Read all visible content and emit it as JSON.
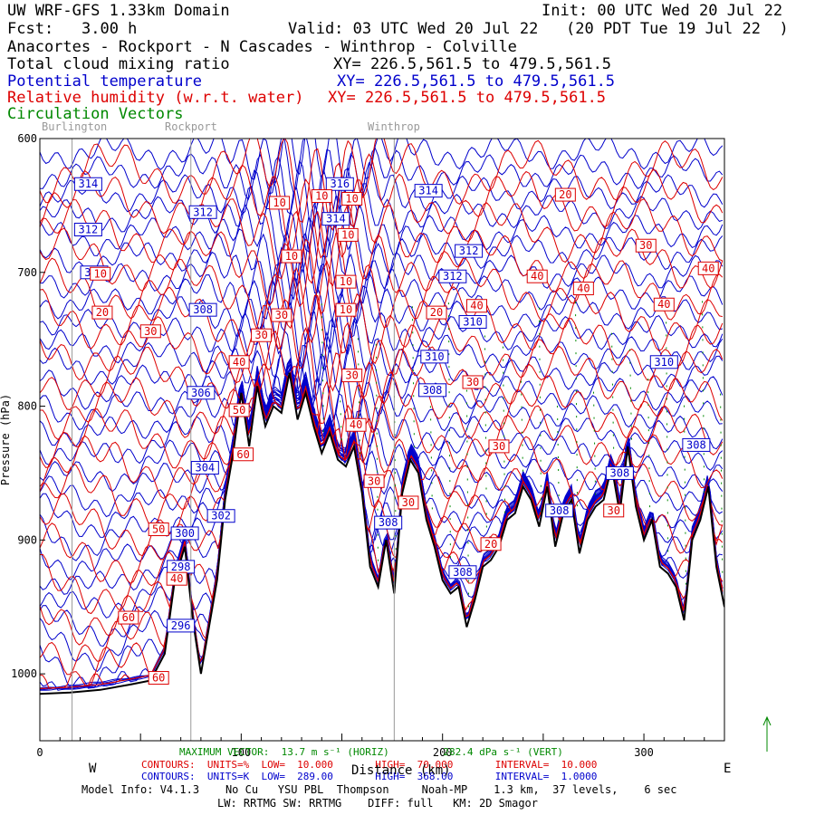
{
  "header": {
    "model": "UW WRF-GFS 1.33km Domain",
    "init": "Init: 00 UTC Wed 20 Jul 22",
    "fcst_label": "Fcst:",
    "fcst_value": "3.00 h",
    "valid": "Valid: 03 UTC Wed 20 Jul 22   (20 PDT Tue 19 Jul 22  )",
    "route": "Anacortes - Rockport - N Cascades - Winthrop - Colville",
    "fields": [
      {
        "name": "Total cloud mixing ratio",
        "xy": "XY= 226.5,561.5 to 479.5,561.5",
        "color": "#000000"
      },
      {
        "name": "Potential temperature",
        "xy": "XY= 226.5,561.5 to 479.5,561.5",
        "color": "#0000cc"
      },
      {
        "name": "Relative humidity (w.r.t. water)",
        "xy": "XY= 226.5,561.5 to 479.5,561.5",
        "color": "#dd0000"
      },
      {
        "name": "Circulation Vectors",
        "xy": "",
        "color": "#008800"
      }
    ]
  },
  "places": [
    "Burlington",
    "Rockport",
    "Winthrop"
  ],
  "chart_data": {
    "type": "line",
    "title": "Cross section: Anacortes - Rockport - N Cascades - Winthrop - Colville",
    "xlabel": "Distance (km)",
    "ylabel": "Pressure (hPa)",
    "xlim": [
      0,
      340
    ],
    "ylim": [
      1050,
      600
    ],
    "x_ticks": [
      "0",
      "100",
      "200",
      "300"
    ],
    "y_ticks": [
      "600",
      "700",
      "800",
      "900",
      "1000"
    ],
    "y_tick_values": [
      600,
      700,
      800,
      900,
      1000
    ],
    "x_tick_values": [
      0,
      100,
      200,
      300
    ],
    "place_markers": [
      {
        "name": "Burlington",
        "x": 16
      },
      {
        "name": "Rockport",
        "x": 75
      },
      {
        "name": "Winthrop",
        "x": 176
      }
    ],
    "terrain": {
      "x": [
        0,
        15,
        30,
        45,
        55,
        62,
        67,
        72,
        76,
        80,
        84,
        88,
        92,
        96,
        100,
        104,
        108,
        112,
        116,
        120,
        124,
        128,
        132,
        136,
        140,
        144,
        148,
        152,
        156,
        160,
        164,
        168,
        172,
        176,
        180,
        184,
        188,
        192,
        196,
        200,
        204,
        208,
        212,
        216,
        220,
        224,
        228,
        232,
        236,
        240,
        244,
        248,
        252,
        256,
        260,
        264,
        268,
        272,
        276,
        280,
        284,
        288,
        292,
        296,
        300,
        304,
        308,
        312,
        316,
        320,
        324,
        328,
        332,
        336,
        340
      ],
      "p": [
        1015,
        1014,
        1012,
        1008,
        1005,
        985,
        930,
        905,
        960,
        1000,
        965,
        930,
        870,
        835,
        790,
        830,
        785,
        815,
        800,
        805,
        775,
        810,
        790,
        815,
        835,
        820,
        840,
        845,
        830,
        865,
        920,
        935,
        900,
        940,
        865,
        840,
        850,
        885,
        905,
        930,
        940,
        935,
        965,
        945,
        920,
        915,
        905,
        885,
        880,
        860,
        870,
        890,
        860,
        905,
        880,
        870,
        910,
        885,
        875,
        870,
        845,
        880,
        830,
        875,
        900,
        885,
        920,
        925,
        935,
        960,
        900,
        885,
        860,
        920,
        950
      ]
    },
    "theta_labels": [
      {
        "text": "314",
        "x": 24,
        "p": 634
      },
      {
        "text": "312",
        "x": 24,
        "p": 668
      },
      {
        "text": "310",
        "x": 27,
        "p": 700
      },
      {
        "text": "312",
        "x": 81,
        "p": 655
      },
      {
        "text": "308",
        "x": 81,
        "p": 728
      },
      {
        "text": "306",
        "x": 80,
        "p": 790
      },
      {
        "text": "304",
        "x": 82,
        "p": 846
      },
      {
        "text": "302",
        "x": 90,
        "p": 882
      },
      {
        "text": "300",
        "x": 72,
        "p": 895
      },
      {
        "text": "298",
        "x": 70,
        "p": 920
      },
      {
        "text": "296",
        "x": 70,
        "p": 964
      },
      {
        "text": "316",
        "x": 149,
        "p": 634
      },
      {
        "text": "314",
        "x": 147,
        "p": 660
      },
      {
        "text": "314",
        "x": 193,
        "p": 639
      },
      {
        "text": "312",
        "x": 213,
        "p": 684
      },
      {
        "text": "312",
        "x": 205,
        "p": 703
      },
      {
        "text": "310",
        "x": 215,
        "p": 737
      },
      {
        "text": "310",
        "x": 196,
        "p": 763
      },
      {
        "text": "308",
        "x": 195,
        "p": 788
      },
      {
        "text": "308",
        "x": 173,
        "p": 887
      },
      {
        "text": "308",
        "x": 210,
        "p": 924
      },
      {
        "text": "308",
        "x": 258,
        "p": 878
      },
      {
        "text": "308",
        "x": 288,
        "p": 850
      },
      {
        "text": "310",
        "x": 310,
        "p": 767
      },
      {
        "text": "308",
        "x": 326,
        "p": 829
      }
    ],
    "rh_labels": [
      {
        "text": "10",
        "x": 30,
        "p": 701
      },
      {
        "text": "20",
        "x": 31,
        "p": 730
      },
      {
        "text": "30",
        "x": 55,
        "p": 744
      },
      {
        "text": "40",
        "x": 99,
        "p": 767
      },
      {
        "text": "50",
        "x": 99,
        "p": 803
      },
      {
        "text": "60",
        "x": 101,
        "p": 836
      },
      {
        "text": "30",
        "x": 110,
        "p": 747
      },
      {
        "text": "30",
        "x": 120,
        "p": 732
      },
      {
        "text": "10",
        "x": 119,
        "p": 648
      },
      {
        "text": "10",
        "x": 125,
        "p": 688
      },
      {
        "text": "10",
        "x": 140,
        "p": 643
      },
      {
        "text": "10",
        "x": 155,
        "p": 645
      },
      {
        "text": "10",
        "x": 153,
        "p": 672
      },
      {
        "text": "10",
        "x": 152,
        "p": 707
      },
      {
        "text": "10",
        "x": 152,
        "p": 728
      },
      {
        "text": "30",
        "x": 155,
        "p": 777
      },
      {
        "text": "40",
        "x": 157,
        "p": 814
      },
      {
        "text": "30",
        "x": 166,
        "p": 856
      },
      {
        "text": "30",
        "x": 183,
        "p": 872
      },
      {
        "text": "20",
        "x": 197,
        "p": 730
      },
      {
        "text": "40",
        "x": 217,
        "p": 725
      },
      {
        "text": "30",
        "x": 215,
        "p": 782
      },
      {
        "text": "30",
        "x": 228,
        "p": 830
      },
      {
        "text": "20",
        "x": 224,
        "p": 903
      },
      {
        "text": "20",
        "x": 261,
        "p": 642
      },
      {
        "text": "40",
        "x": 247,
        "p": 703
      },
      {
        "text": "40",
        "x": 270,
        "p": 712
      },
      {
        "text": "30",
        "x": 301,
        "p": 680
      },
      {
        "text": "40",
        "x": 310,
        "p": 724
      },
      {
        "text": "40",
        "x": 332,
        "p": 697
      },
      {
        "text": "30",
        "x": 285,
        "p": 878
      },
      {
        "text": "60",
        "x": 44,
        "p": 958
      },
      {
        "text": "60",
        "x": 59,
        "p": 1003
      },
      {
        "text": "50",
        "x": 59,
        "p": 892
      },
      {
        "text": "40",
        "x": 68,
        "p": 929
      }
    ]
  },
  "footer": {
    "max_vector": "MAXIMUM VECTOR:  13.7 m s⁻¹ (HORIZ)         282.4 dPa s⁻¹ (VERT)",
    "rh_contours": "CONTOURS:  UNITS=%  LOW=  10.000       HIGH=  70.000       INTERVAL=  10.000",
    "theta_contours": "CONTOURS:  UNITS=K  LOW=  289.00       HIGH=  368.00       INTERVAL=  1.0000",
    "west": "W",
    "east": "E",
    "model_info": "Model Info: V4.1.3    No Cu   YSU PBL  Thompson     Noah-MP    1.3 km,  37 levels,    6 sec",
    "model_info2": "LW: RRTMG SW: RRTMG    DIFF: full   KM: 2D Smagor"
  },
  "colors": {
    "theta": "#0000cc",
    "rh": "#dd0000",
    "terrain": "#000000",
    "vector": "#008800"
  }
}
